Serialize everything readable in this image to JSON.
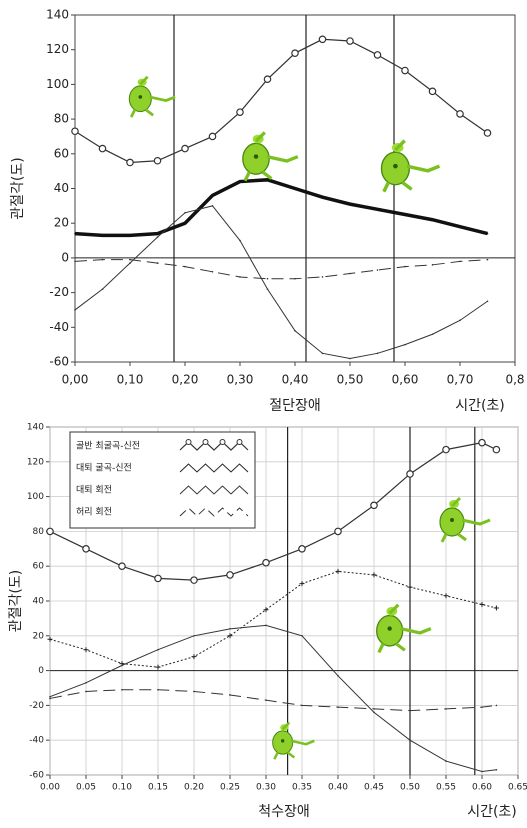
{
  "chart_data": [
    {
      "type": "line",
      "ylabel": "관절각(도)",
      "group_label": "절단장애",
      "xlabel": "시간(초)",
      "x": [
        0,
        0.05,
        0.1,
        0.15,
        0.2,
        0.25,
        0.3,
        0.35,
        0.4,
        0.45,
        0.5,
        0.55,
        0.6,
        0.65,
        0.7,
        0.75
      ],
      "series": [
        {
          "color": "#333333",
          "style": "circles",
          "values": [
            73,
            63,
            55,
            56,
            63,
            70,
            84,
            103,
            118,
            126,
            125,
            117,
            108,
            96,
            83,
            72
          ]
        },
        {
          "color": "#111111",
          "style": "thick",
          "values": [
            14,
            13,
            13,
            14,
            20,
            36,
            44,
            45,
            40,
            35,
            31,
            28,
            25,
            22,
            18,
            14
          ]
        },
        {
          "color": "#333333",
          "style": "solid",
          "values": [
            -30,
            -18,
            -3,
            12,
            26,
            30,
            10,
            -18,
            -42,
            -55,
            -58,
            -55,
            -50,
            -44,
            -36,
            -25
          ]
        },
        {
          "color": "#333333",
          "style": "dashed",
          "values": [
            -2,
            -1,
            -1,
            -3,
            -5,
            -8,
            -11,
            -12,
            -12,
            -11,
            -9,
            -7,
            -5,
            -4,
            -2,
            -1
          ]
        }
      ],
      "xlim": [
        0,
        0.8
      ],
      "ylim": [
        -60,
        140
      ],
      "xticks": [
        {
          "value": 0,
          "label": "0,00"
        },
        {
          "value": 0.1,
          "label": "0,10"
        },
        {
          "value": 0.2,
          "label": "0,20"
        },
        {
          "value": 0.3,
          "label": "0,30"
        },
        {
          "value": 0.4,
          "label": "0,40"
        },
        {
          "value": 0.5,
          "label": "0,50"
        },
        {
          "value": 0.6,
          "label": "0,60"
        },
        {
          "value": 0.7,
          "label": "0,70"
        },
        {
          "value": 0.8,
          "label": "0,8"
        }
      ],
      "yticks": [
        -60,
        -40,
        -20,
        0,
        20,
        40,
        60,
        80,
        100,
        120,
        140
      ],
      "grid": false,
      "vlines": [
        0.18,
        0.42,
        0.58
      ]
    },
    {
      "type": "line",
      "ylabel": "관절각(도)",
      "group_label": "척수장애",
      "xlabel": "시간(초)",
      "x": [
        0,
        0.05,
        0.1,
        0.15,
        0.2,
        0.25,
        0.3,
        0.35,
        0.4,
        0.45,
        0.5,
        0.55,
        0.6,
        0.62
      ],
      "series": [
        {
          "name": "골반 최굴곡-신전",
          "color": "#333333",
          "style": "circles",
          "values": [
            80,
            70,
            60,
            53,
            52,
            55,
            62,
            70,
            80,
            95,
            113,
            127,
            131,
            127
          ]
        },
        {
          "name": "대퇴 굴곡-신전",
          "color": "#222222",
          "style": "dotted",
          "values": [
            18,
            12,
            4,
            2,
            8,
            20,
            35,
            50,
            57,
            55,
            48,
            43,
            38,
            36
          ]
        },
        {
          "name": "대퇴 회전",
          "color": "#333333",
          "style": "solid",
          "values": [
            -15,
            -7,
            3,
            12,
            20,
            24,
            26,
            20,
            -3,
            -24,
            -40,
            -52,
            -58,
            -57
          ]
        },
        {
          "name": "허리 회전",
          "color": "#333333",
          "style": "dashed",
          "values": [
            -16,
            -12,
            -11,
            -11,
            -12,
            -14,
            -17,
            -20,
            -21,
            -22,
            -23,
            -22,
            -21,
            -20
          ]
        }
      ],
      "xlim": [
        0,
        0.65
      ],
      "ylim": [
        -60,
        140
      ],
      "xticks": [
        {
          "value": 0,
          "label": "0.00"
        },
        0.05,
        {
          "value": 0.1,
          "label": "0.10"
        },
        0.15,
        {
          "value": 0.2,
          "label": "0.20"
        },
        0.25,
        {
          "value": 0.3,
          "label": "0.30"
        },
        0.35,
        {
          "value": 0.4,
          "label": "0.40"
        },
        0.45,
        {
          "value": 0.5,
          "label": "0.50"
        },
        0.55,
        {
          "value": 0.6,
          "label": "0.60"
        },
        0.65
      ],
      "yticks": [
        -60,
        -40,
        -20,
        0,
        20,
        40,
        60,
        80,
        100,
        120,
        140
      ],
      "grid": true,
      "vlines": [
        0.33,
        0.5,
        0.59
      ],
      "legend": "upper left"
    }
  ]
}
